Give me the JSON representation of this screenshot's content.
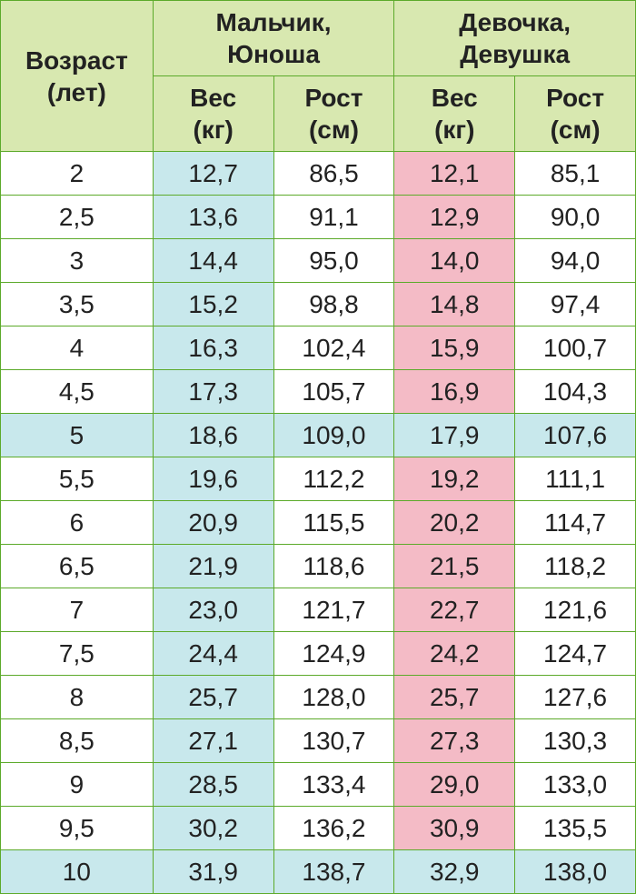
{
  "type": "table",
  "colors": {
    "border": "#5caa2a",
    "header_bg": "#d8e8b0",
    "blue_bg": "#c8e8ec",
    "pink_bg": "#f4bbc6",
    "white_bg": "#ffffff",
    "text": "#222222"
  },
  "typography": {
    "font_family": "Arial, sans-serif",
    "cell_fontsize": 28,
    "header_fontweight": 700
  },
  "header": {
    "age_label_top": "Возраст",
    "age_label_bottom": "(лет)",
    "boy_label_top": "Мальчик,",
    "boy_label_bottom": "Юноша",
    "girl_label_top": "Девочка,",
    "girl_label_bottom": "Девушка",
    "weight_label_top": "Вес",
    "weight_label_bottom": "(кг)",
    "height_label_top": "Рост",
    "height_label_bottom": "(см)"
  },
  "rows": [
    {
      "age": "2",
      "bw": "12,7",
      "bh": "86,5",
      "gw": "12,1",
      "gh": "85,1",
      "full_blue": false
    },
    {
      "age": "2,5",
      "bw": "13,6",
      "bh": "91,1",
      "gw": "12,9",
      "gh": "90,0",
      "full_blue": false
    },
    {
      "age": "3",
      "bw": "14,4",
      "bh": "95,0",
      "gw": "14,0",
      "gh": "94,0",
      "full_blue": false
    },
    {
      "age": "3,5",
      "bw": "15,2",
      "bh": "98,8",
      "gw": "14,8",
      "gh": "97,4",
      "full_blue": false
    },
    {
      "age": "4",
      "bw": "16,3",
      "bh": "102,4",
      "gw": "15,9",
      "gh": "100,7",
      "full_blue": false
    },
    {
      "age": "4,5",
      "bw": "17,3",
      "bh": "105,7",
      "gw": "16,9",
      "gh": "104,3",
      "full_blue": false
    },
    {
      "age": "5",
      "bw": "18,6",
      "bh": "109,0",
      "gw": "17,9",
      "gh": "107,6",
      "full_blue": true
    },
    {
      "age": "5,5",
      "bw": "19,6",
      "bh": "112,2",
      "gw": "19,2",
      "gh": "111,1",
      "full_blue": false
    },
    {
      "age": "6",
      "bw": "20,9",
      "bh": "115,5",
      "gw": "20,2",
      "gh": "114,7",
      "full_blue": false
    },
    {
      "age": "6,5",
      "bw": "21,9",
      "bh": "118,6",
      "gw": "21,5",
      "gh": "118,2",
      "full_blue": false
    },
    {
      "age": "7",
      "bw": "23,0",
      "bh": "121,7",
      "gw": "22,7",
      "gh": "121,6",
      "full_blue": false
    },
    {
      "age": "7,5",
      "bw": "24,4",
      "bh": "124,9",
      "gw": "24,2",
      "gh": "124,7",
      "full_blue": false
    },
    {
      "age": "8",
      "bw": "25,7",
      "bh": "128,0",
      "gw": "25,7",
      "gh": "127,6",
      "full_blue": false
    },
    {
      "age": "8,5",
      "bw": "27,1",
      "bh": "130,7",
      "gw": "27,3",
      "gh": "130,3",
      "full_blue": false
    },
    {
      "age": "9",
      "bw": "28,5",
      "bh": "133,4",
      "gw": "29,0",
      "gh": "133,0",
      "full_blue": false
    },
    {
      "age": "9,5",
      "bw": "30,2",
      "bh": "136,2",
      "gw": "30,9",
      "gh": "135,5",
      "full_blue": false
    },
    {
      "age": "10",
      "bw": "31,9",
      "bh": "138,7",
      "gw": "32,9",
      "gh": "138,0",
      "full_blue": true
    }
  ]
}
